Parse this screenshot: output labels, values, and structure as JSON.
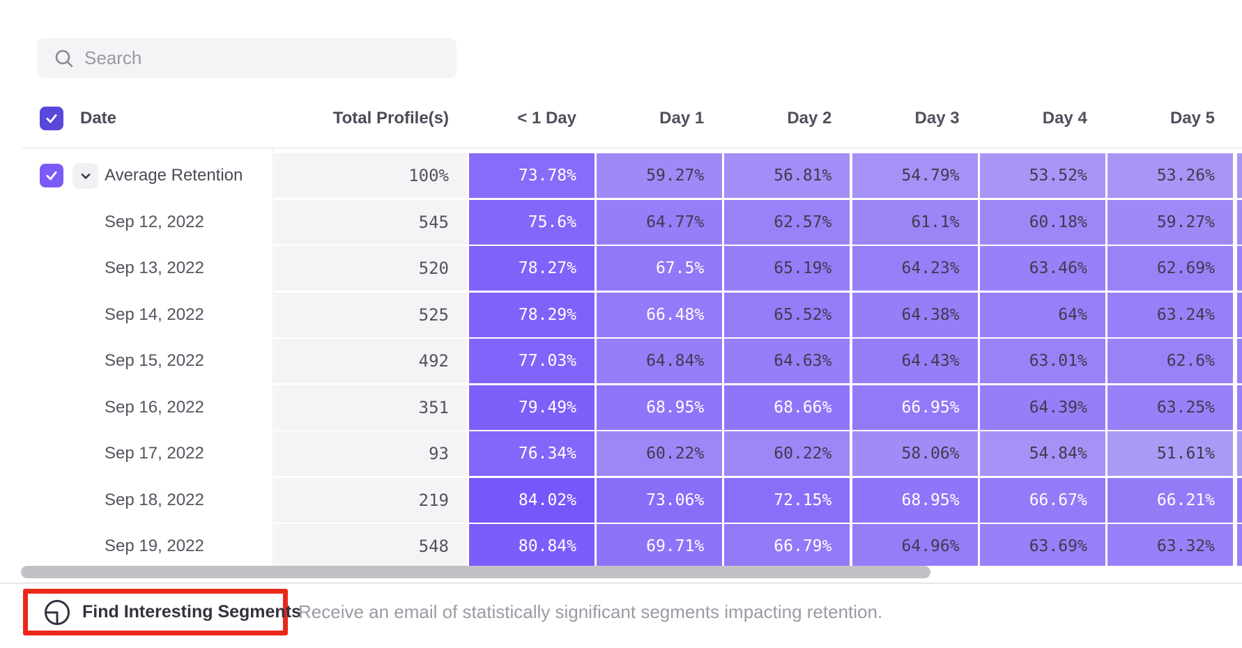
{
  "search": {
    "placeholder": "Search"
  },
  "columns": {
    "date_header": "Date",
    "total_header": "Total Profile(s)",
    "day_headers": [
      "< 1 Day",
      "Day 1",
      "Day 2",
      "Day 3",
      "Day 4",
      "Day 5"
    ]
  },
  "rows": [
    {
      "label": "Average Retention",
      "is_average": true,
      "total": "100%",
      "values": [
        "73.78%",
        "59.27%",
        "56.81%",
        "54.79%",
        "53.52%",
        "53.26%"
      ]
    },
    {
      "label": "Sep 12, 2022",
      "is_average": false,
      "total": "545",
      "values": [
        "75.6%",
        "64.77%",
        "62.57%",
        "61.1%",
        "60.18%",
        "59.27%"
      ]
    },
    {
      "label": "Sep 13, 2022",
      "is_average": false,
      "total": "520",
      "values": [
        "78.27%",
        "67.5%",
        "65.19%",
        "64.23%",
        "63.46%",
        "62.69%"
      ]
    },
    {
      "label": "Sep 14, 2022",
      "is_average": false,
      "total": "525",
      "values": [
        "78.29%",
        "66.48%",
        "65.52%",
        "64.38%",
        "64%",
        "63.24%"
      ]
    },
    {
      "label": "Sep 15, 2022",
      "is_average": false,
      "total": "492",
      "values": [
        "77.03%",
        "64.84%",
        "64.63%",
        "64.43%",
        "63.01%",
        "62.6%"
      ]
    },
    {
      "label": "Sep 16, 2022",
      "is_average": false,
      "total": "351",
      "values": [
        "79.49%",
        "68.95%",
        "68.66%",
        "66.95%",
        "64.39%",
        "63.25%"
      ]
    },
    {
      "label": "Sep 17, 2022",
      "is_average": false,
      "total": "93",
      "values": [
        "76.34%",
        "60.22%",
        "60.22%",
        "58.06%",
        "54.84%",
        "51.61%"
      ]
    },
    {
      "label": "Sep 18, 2022",
      "is_average": false,
      "total": "219",
      "values": [
        "84.02%",
        "73.06%",
        "72.15%",
        "68.95%",
        "66.67%",
        "66.21%"
      ]
    },
    {
      "label": "Sep 19, 2022",
      "is_average": false,
      "total": "548",
      "values": [
        "80.84%",
        "69.71%",
        "66.79%",
        "64.96%",
        "63.69%",
        "63.32%"
      ]
    }
  ],
  "heat_scale": {
    "light_color": "#AC9AF6",
    "light_value": 51,
    "dark_color": "#7554FB",
    "dark_value": 85,
    "white_text_threshold": 66,
    "dark_text_color": "#3E3B4F"
  },
  "colors": {
    "header_checkbox": "#5747DA",
    "row_checkbox": "#7B5AF8",
    "totals_cell_bg": "#F4F4F6",
    "annotation_red": "#E9281A",
    "scrollbar": "#C2C1C6"
  },
  "footer": {
    "button_label": "Find Interesting Segments",
    "description": "Receive an email of statistically significant segments impacting retention."
  }
}
